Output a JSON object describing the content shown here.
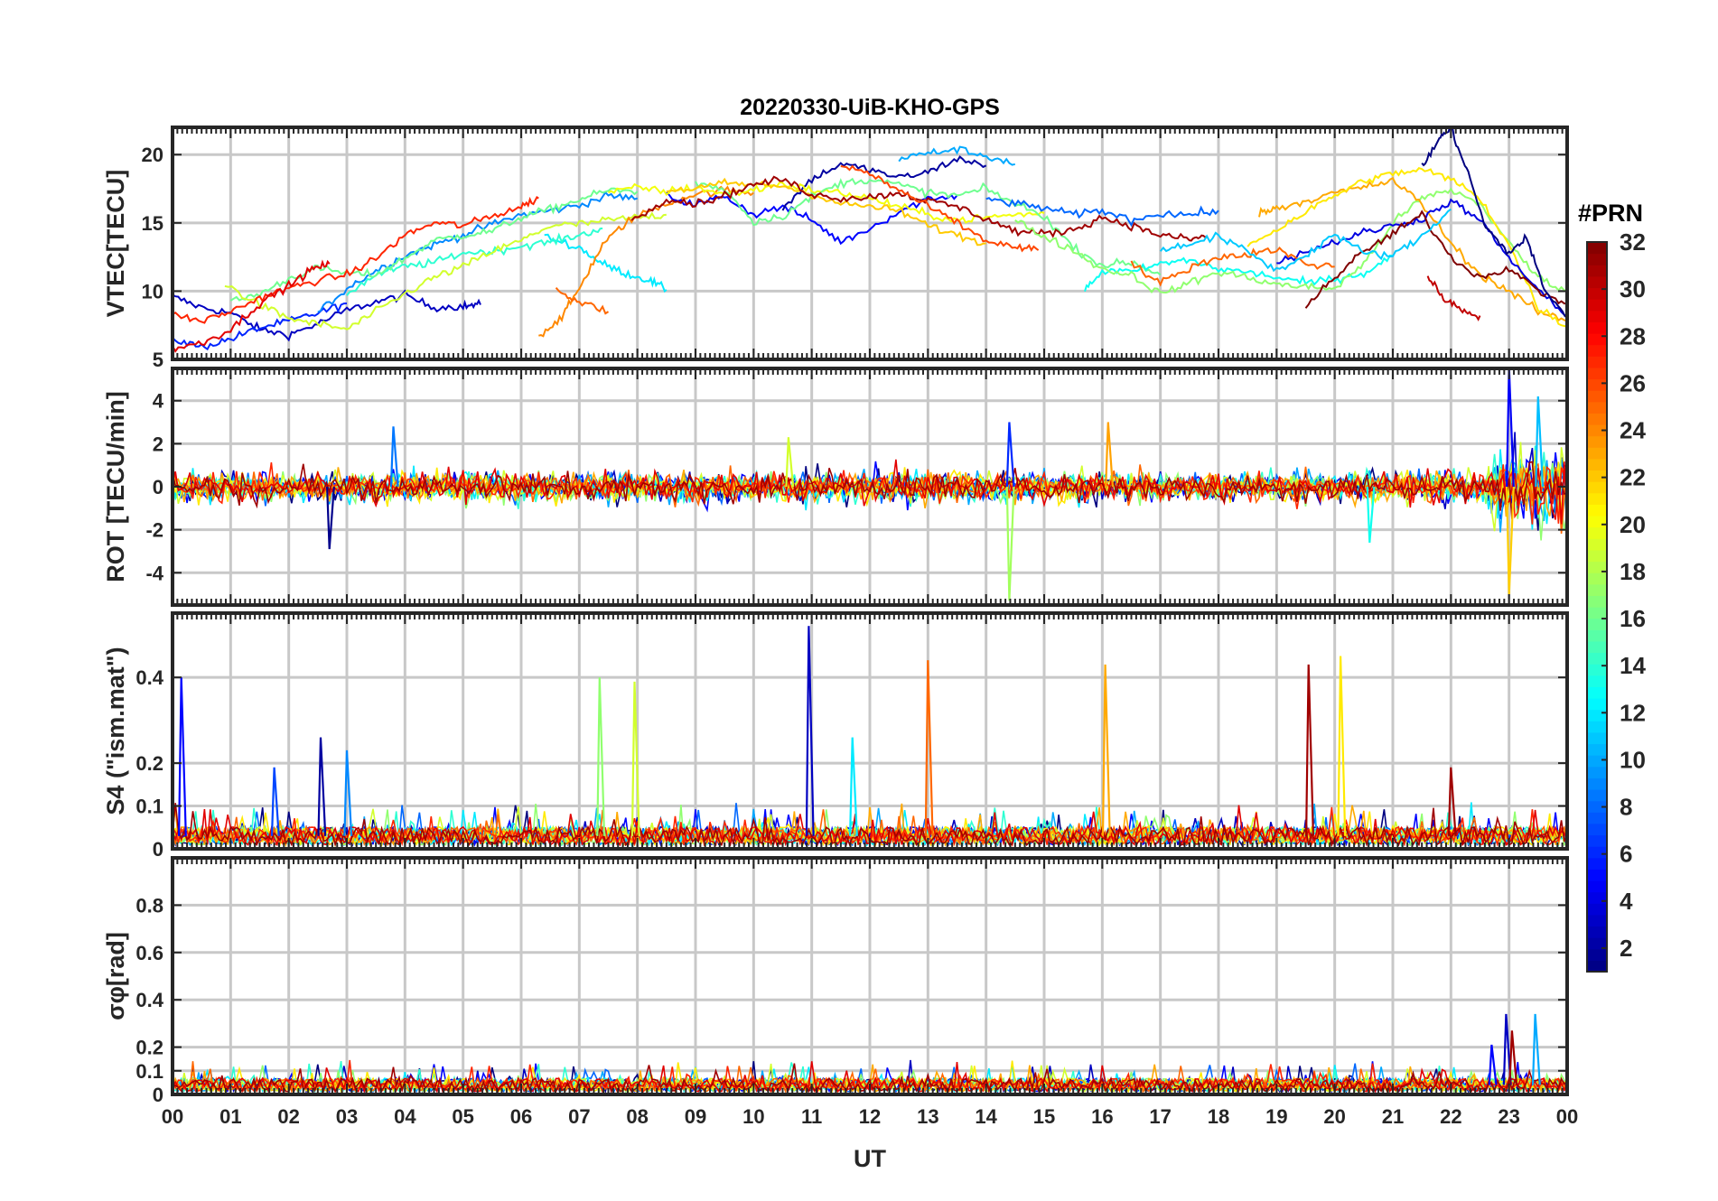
{
  "chart_data": [
    {
      "type": "line",
      "title": "20220330-UiB-KHO-GPS",
      "ylabel": "VTEC[TECU]",
      "xlabel": "",
      "xlim": [
        0,
        24
      ],
      "ylim": [
        5,
        22
      ],
      "yticks": [
        5,
        10,
        15,
        20
      ],
      "ytick_labels": [
        "5",
        "10",
        "15",
        "20"
      ],
      "grid": true,
      "series_note": "one trace per GPS satellite PRN, colored by PRN",
      "series": [
        {
          "prn": 3,
          "x": [
            0.0,
            0.5,
            1.0,
            1.5,
            2.0,
            2.5,
            3.0,
            3.5,
            4.0,
            4.5,
            5.0,
            5.3
          ],
          "y": [
            9.6,
            8.8,
            8.4,
            7.2,
            6.8,
            7.6,
            8.6,
            9.2,
            9.7,
            8.8,
            8.9,
            9.0
          ]
        },
        {
          "prn": 6,
          "x": [
            0.0,
            0.5,
            1.0,
            1.5,
            2.0,
            2.5,
            3.0
          ],
          "y": [
            6.5,
            5.9,
            6.5,
            7.3,
            7.8,
            8.4,
            9.1
          ]
        },
        {
          "prn": 9,
          "x": [
            2.5,
            3.0,
            3.5,
            4.0,
            4.5,
            5.0,
            5.5,
            6.0,
            6.5,
            7.0,
            7.5,
            8.0
          ],
          "y": [
            8.4,
            10.2,
            11.5,
            12.6,
            13.4,
            14.1,
            14.9,
            15.6,
            15.9,
            16.3,
            17.0,
            16.8
          ]
        },
        {
          "prn": 12,
          "x": [
            6.4,
            7.0,
            7.4,
            7.8,
            8.2,
            8.5
          ],
          "y": [
            14.0,
            13.2,
            12.0,
            11.3,
            10.8,
            10.1
          ]
        },
        {
          "prn": 14,
          "x": [
            3.0,
            3.5,
            4.0,
            4.5,
            5.0,
            5.5,
            6.0,
            6.5,
            7.0,
            7.4
          ],
          "y": [
            9.8,
            11.2,
            11.8,
            12.1,
            12.8,
            12.9,
            13.3,
            13.6,
            14.1,
            14.6
          ]
        },
        {
          "prn": 16,
          "x": [
            1.0,
            1.5,
            2.0,
            2.5,
            3.0,
            3.5,
            4.0,
            4.5,
            5.0,
            5.5,
            6.0,
            6.5,
            7.0,
            7.5,
            8.0
          ],
          "y": [
            9.2,
            9.8,
            10.9,
            11.7,
            11.3,
            11.2,
            12.4,
            13.7,
            14.1,
            14.4,
            15.4,
            16.0,
            16.7,
            17.4,
            17.3
          ]
        },
        {
          "prn": 19,
          "x": [
            0.9,
            1.5,
            2.0,
            2.5,
            3.0,
            3.5,
            4.0,
            4.5,
            5.0,
            5.5,
            6.0,
            6.5,
            7.0,
            7.5,
            8.0,
            8.5
          ],
          "y": [
            10.5,
            9.0,
            8.0,
            7.6,
            7.2,
            8.5,
            9.8,
            11.0,
            11.8,
            12.9,
            13.7,
            14.8,
            14.9,
            15.2,
            15.4,
            15.6
          ]
        },
        {
          "prn": 24,
          "x": [
            6.3,
            6.7,
            7.0,
            7.4,
            7.8,
            8.3,
            8.9,
            9.5,
            10.0
          ],
          "y": [
            6.7,
            8.1,
            10.2,
            13.4,
            15.0,
            16.1,
            17.0,
            17.4,
            17.2
          ]
        },
        {
          "prn": 25,
          "x": [
            6.6,
            7.0,
            7.5
          ],
          "y": [
            10.2,
            9.2,
            8.5
          ]
        },
        {
          "prn": 27,
          "x": [
            0.0,
            0.5,
            1.0,
            1.5,
            2.0,
            2.5,
            3.0,
            3.5,
            4.0,
            4.5,
            5.0,
            5.5,
            6.0,
            6.3
          ],
          "y": [
            8.3,
            7.8,
            8.5,
            9.5,
            10.2,
            10.8,
            11.2,
            12.4,
            14.1,
            15.0,
            14.8,
            15.5,
            16.2,
            16.8
          ]
        },
        {
          "prn": 29,
          "x": [
            0.0,
            0.5,
            1.0,
            1.5,
            2.0,
            2.4,
            2.7
          ],
          "y": [
            5.8,
            6.2,
            7.2,
            9.1,
            10.4,
            11.6,
            12.0
          ]
        },
        {
          "prn": 5,
          "x": [
            8.5,
            9.0,
            9.5,
            10.0,
            10.5,
            11.0,
            11.5,
            12.0,
            12.5,
            13.0,
            13.5
          ],
          "y": [
            17.0,
            16.3,
            17.0,
            15.6,
            16.2,
            15.2,
            13.6,
            14.6,
            15.8,
            16.8,
            17.0
          ]
        },
        {
          "prn": 2,
          "x": [
            10.5,
            11.0,
            11.5,
            12.0,
            12.5,
            13.0,
            13.5,
            14.0
          ],
          "y": [
            16.0,
            18.2,
            19.3,
            18.9,
            18.3,
            18.7,
            19.7,
            19.2
          ]
        },
        {
          "prn": 10,
          "x": [
            12.5,
            13.0,
            13.5,
            14.0,
            14.5
          ],
          "y": [
            19.7,
            20.1,
            20.4,
            19.9,
            19.3
          ]
        },
        {
          "prn": 20,
          "x": [
            7.5,
            8.0,
            8.5,
            9.0,
            9.5,
            10.0,
            10.5,
            11.0,
            11.5,
            12.0,
            12.5,
            13.0,
            13.5,
            14.0,
            14.5,
            15.0
          ],
          "y": [
            17.2,
            17.6,
            17.3,
            17.6,
            17.1,
            17.4,
            17.9,
            17.4,
            17.2,
            16.8,
            16.2,
            15.6,
            15.2,
            15.4,
            15.6,
            15.7
          ]
        },
        {
          "prn": 16,
          "x": [
            9.0,
            9.5,
            10.0,
            10.5,
            11.0,
            11.5,
            12.0,
            12.5,
            13.0,
            13.5,
            14.0,
            14.5,
            15.0,
            15.5,
            16.0,
            16.5,
            17.0
          ],
          "y": [
            17.9,
            17.5,
            15.1,
            15.5,
            16.9,
            17.9,
            18.2,
            17.8,
            17.2,
            17.0,
            17.5,
            16.4,
            15.5,
            13.2,
            11.9,
            12.1,
            11.2
          ]
        },
        {
          "prn": 22,
          "x": [
            8.5,
            9.0,
            9.5,
            10.0,
            10.5,
            11.0,
            11.5,
            12.0,
            12.5,
            13.0,
            13.5,
            14.0
          ],
          "y": [
            17.4,
            17.5,
            17.9,
            17.8,
            17.7,
            17.1,
            16.4,
            16.2,
            15.9,
            14.8,
            14.1,
            13.5
          ]
        },
        {
          "prn": 31,
          "x": [
            7.9,
            8.5,
            9.0,
            9.5,
            10.0,
            10.5,
            11.0,
            11.5,
            12.0,
            12.5,
            13.0,
            13.5,
            14.0,
            14.5,
            15.0,
            15.5,
            16.0,
            16.5,
            17.0,
            17.5,
            17.8
          ],
          "y": [
            15.1,
            16.8,
            16.4,
            17.0,
            17.8,
            18.2,
            17.1,
            16.8,
            16.9,
            17.2,
            16.6,
            16.2,
            15.3,
            14.4,
            14.2,
            14.5,
            15.4,
            14.8,
            14.1,
            13.8,
            14.0
          ]
        },
        {
          "prn": 26,
          "x": [
            11.5,
            12.0,
            12.5,
            13.0,
            13.5,
            14.0,
            14.5,
            14.9
          ],
          "y": [
            19.2,
            18.6,
            17.4,
            16.2,
            15.0,
            13.7,
            13.2,
            13.0
          ]
        },
        {
          "prn": 8,
          "x": [
            14.0,
            14.5,
            15.0,
            15.5,
            16.0,
            16.5,
            17.0,
            17.5,
            18.0
          ],
          "y": [
            16.8,
            16.4,
            16.1,
            15.6,
            15.9,
            15.2,
            15.7,
            15.6,
            15.9
          ]
        },
        {
          "prn": 13,
          "x": [
            15.7,
            16.0,
            16.5,
            17.0,
            17.5,
            18.0,
            18.5,
            19.0,
            19.5,
            20.0,
            20.5,
            21.0
          ],
          "y": [
            10.0,
            11.5,
            11.4,
            12.0,
            12.3,
            11.6,
            11.4,
            11.0,
            10.6,
            10.9,
            11.3,
            12.6
          ]
        },
        {
          "prn": 17,
          "x": [
            14.5,
            15.0,
            15.5,
            16.0,
            16.5,
            17.0,
            17.5,
            18.0,
            18.5,
            19.0,
            19.5,
            20.0,
            20.5,
            21.0,
            21.5,
            22.0,
            22.5,
            23.0,
            23.5,
            24.0
          ],
          "y": [
            15.2,
            14.0,
            13.0,
            11.6,
            11.2,
            9.8,
            10.6,
            11.4,
            11.0,
            10.5,
            10.3,
            10.2,
            12.0,
            15.0,
            16.8,
            17.4,
            16.4,
            13.5,
            11.0,
            10.0
          ]
        },
        {
          "prn": 23,
          "x": [
            18.7,
            19.0,
            19.5,
            20.0,
            20.5,
            21.0,
            21.5,
            22.0,
            22.5,
            23.0,
            23.5,
            24.0
          ],
          "y": [
            15.7,
            16.1,
            16.6,
            17.2,
            17.6,
            18.1,
            16.4,
            13.5,
            11.2,
            10.0,
            8.5,
            7.8
          ]
        },
        {
          "prn": 21,
          "x": [
            18.5,
            19.0,
            19.5,
            20.0,
            20.5,
            21.0,
            21.5,
            22.0,
            22.5,
            23.0,
            23.5,
            24.0
          ],
          "y": [
            13.4,
            14.5,
            15.8,
            17.0,
            18.1,
            18.6,
            18.9,
            18.2,
            16.8,
            13.4,
            8.8,
            7.4
          ]
        },
        {
          "prn": 4,
          "x": [
            19.0,
            19.5,
            20.0,
            20.5,
            21.0,
            21.5,
            22.0,
            22.5,
            23.0,
            23.5,
            24.0
          ],
          "y": [
            12.1,
            12.9,
            13.6,
            14.3,
            14.8,
            15.3,
            16.6,
            15.2,
            12.4,
            10.1,
            8.0
          ]
        },
        {
          "prn": 32,
          "x": [
            19.5,
            20.0,
            20.5,
            21.0,
            21.5,
            22.0,
            22.5,
            23.0,
            23.5,
            24.0
          ],
          "y": [
            9.0,
            11.0,
            12.9,
            14.2,
            15.6,
            12.5,
            11.0,
            11.7,
            10.0,
            9.1
          ]
        },
        {
          "prn": 1,
          "x": [
            21.5,
            21.8,
            22.0,
            22.3,
            22.6,
            23.0,
            23.3,
            23.6,
            24.0
          ],
          "y": [
            19.0,
            21.2,
            21.9,
            18.6,
            14.6,
            12.8,
            13.9,
            10.2,
            8.1
          ]
        },
        {
          "prn": 30,
          "x": [
            21.6,
            21.9,
            22.2,
            22.5
          ],
          "y": [
            11.0,
            9.4,
            8.6,
            8.2
          ]
        },
        {
          "prn": 25,
          "x": [
            16.5,
            17.0,
            17.5,
            18.0,
            18.5,
            19.0,
            19.5,
            20.0
          ],
          "y": [
            12.0,
            10.6,
            11.7,
            12.5,
            12.7,
            13.1,
            12.0,
            11.8
          ]
        },
        {
          "prn": 11,
          "x": [
            17.0,
            17.5,
            18.0,
            18.5,
            19.0,
            19.5,
            20.0,
            20.5,
            21.0,
            21.5,
            22.0
          ],
          "y": [
            13.0,
            13.5,
            14.0,
            12.9,
            11.5,
            12.6,
            14.2,
            12.8,
            12.6,
            14.0,
            16.0
          ]
        }
      ]
    },
    {
      "type": "line",
      "title": "",
      "ylabel": "ROT [TECU/min]",
      "xlabel": "",
      "xlim": [
        0,
        24
      ],
      "ylim": [
        -5.5,
        5.5
      ],
      "yticks": [
        -4,
        -2,
        0,
        2,
        4
      ],
      "ytick_labels": [
        "-4",
        "-2",
        "0",
        "2",
        "4"
      ],
      "grid": true,
      "notable_spikes": [
        {
          "x": 2.7,
          "y": -2.9
        },
        {
          "x": 3.8,
          "y": 2.8
        },
        {
          "x": 10.6,
          "y": 2.3
        },
        {
          "x": 14.4,
          "y": 3.0
        },
        {
          "x": 14.4,
          "y": -5.3
        },
        {
          "x": 16.1,
          "y": 3.0
        },
        {
          "x": 20.6,
          "y": -2.6
        },
        {
          "x": 23.0,
          "y": 5.5
        },
        {
          "x": 23.0,
          "y": -5.0
        },
        {
          "x": 23.5,
          "y": 4.2
        }
      ],
      "typical_amplitude": 0.6
    },
    {
      "type": "line",
      "title": "",
      "ylabel": "S4 (\"ism.mat\")",
      "xlabel": "",
      "xlim": [
        0,
        24
      ],
      "ylim": [
        0,
        0.55
      ],
      "yticks": [
        0,
        0.1,
        0.2,
        0.4
      ],
      "ytick_labels": [
        "0",
        "0.1",
        "0.2",
        "0.4"
      ],
      "grid": true,
      "notable_spikes": [
        {
          "x": 0.15,
          "y": 0.4,
          "prn": 5
        },
        {
          "x": 1.75,
          "y": 0.19,
          "prn": 7
        },
        {
          "x": 2.55,
          "y": 0.26,
          "prn": 2
        },
        {
          "x": 3.0,
          "y": 0.23,
          "prn": 9
        },
        {
          "x": 7.35,
          "y": 0.4,
          "prn": 17
        },
        {
          "x": 7.95,
          "y": 0.39,
          "prn": 19
        },
        {
          "x": 10.95,
          "y": 0.52,
          "prn": 3
        },
        {
          "x": 11.7,
          "y": 0.26,
          "prn": 12
        },
        {
          "x": 13.0,
          "y": 0.44,
          "prn": 25
        },
        {
          "x": 16.05,
          "y": 0.43,
          "prn": 23
        },
        {
          "x": 19.55,
          "y": 0.43,
          "prn": 31
        },
        {
          "x": 20.1,
          "y": 0.45,
          "prn": 21
        },
        {
          "x": 22.0,
          "y": 0.19,
          "prn": 31
        }
      ],
      "baseline": 0.03
    },
    {
      "type": "line",
      "title": "",
      "ylabel": "σφ[rad]",
      "xlabel": "UT",
      "xlim": [
        0,
        24
      ],
      "ylim": [
        0,
        1.0
      ],
      "yticks": [
        0,
        0.1,
        0.2,
        0.4,
        0.6,
        0.8
      ],
      "ytick_labels": [
        "0",
        "0.1",
        "0.2",
        "0.4",
        "0.6",
        "0.8"
      ],
      "grid": true,
      "notable_spikes": [
        {
          "x": 22.95,
          "y": 0.34,
          "prn": 3
        },
        {
          "x": 23.05,
          "y": 0.27,
          "prn": 31
        },
        {
          "x": 23.45,
          "y": 0.34,
          "prn": 10
        },
        {
          "x": 22.7,
          "y": 0.21,
          "prn": 5
        }
      ],
      "baseline": 0.04
    }
  ],
  "x_axis": {
    "ticks": [
      0,
      1,
      2,
      3,
      4,
      5,
      6,
      7,
      8,
      9,
      10,
      11,
      12,
      13,
      14,
      15,
      16,
      17,
      18,
      19,
      20,
      21,
      22,
      23,
      24
    ],
    "tick_labels": [
      "00",
      "01",
      "02",
      "03",
      "04",
      "05",
      "06",
      "07",
      "08",
      "09",
      "10",
      "11",
      "12",
      "13",
      "14",
      "15",
      "16",
      "17",
      "18",
      "19",
      "20",
      "21",
      "22",
      "23",
      "00"
    ],
    "label": "UT"
  },
  "colorbar": {
    "title": "#PRN",
    "range": [
      1,
      32
    ],
    "ticks": [
      2,
      4,
      6,
      8,
      10,
      12,
      14,
      16,
      18,
      20,
      22,
      24,
      26,
      28,
      30,
      32
    ],
    "tick_labels": [
      "2",
      "4",
      "6",
      "8",
      "10",
      "12",
      "14",
      "16",
      "18",
      "20",
      "22",
      "24",
      "26",
      "28",
      "30",
      "32"
    ],
    "colormap": "jet"
  }
}
